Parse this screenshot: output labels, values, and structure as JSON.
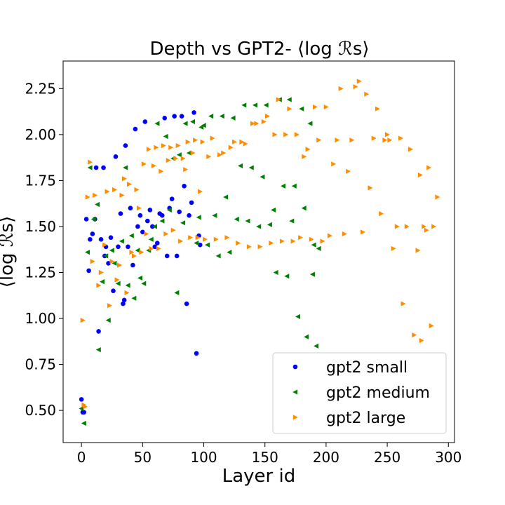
{
  "chart_data": {
    "type": "scatter",
    "title": "Depth vs GPT2- ⟨log ℛs⟩",
    "xlabel": "Layer id",
    "ylabel": "⟨log ℛs⟩",
    "xlim": [
      -15,
      305
    ],
    "ylim": [
      0.325,
      2.4
    ],
    "xticks": [
      0,
      50,
      100,
      150,
      200,
      250,
      300
    ],
    "yticks": [
      0.5,
      0.75,
      1.0,
      1.25,
      1.5,
      1.75,
      2.0,
      2.25
    ],
    "ytick_labels": [
      "0.50",
      "0.75",
      "1.00",
      "1.25",
      "1.50",
      "1.75",
      "2.00",
      "2.25"
    ],
    "grid": false,
    "legend_position": "lower-right",
    "series": [
      {
        "name": "gpt2 small",
        "color": "#0000ff",
        "marker": "circle",
        "points": [
          [
            0,
            0.56
          ],
          [
            1,
            0.49
          ],
          [
            2,
            0.49
          ],
          [
            4,
            1.54
          ],
          [
            6,
            1.26
          ],
          [
            7,
            1.43
          ],
          [
            9,
            1.46
          ],
          [
            11,
            1.54
          ],
          [
            12,
            1.82
          ],
          [
            14,
            0.93
          ],
          [
            16,
            1.43
          ],
          [
            18,
            1.82
          ],
          [
            19,
            1.34
          ],
          [
            20,
            1.39
          ],
          [
            22,
            1.3
          ],
          [
            24,
            1.44
          ],
          [
            26,
            1.15
          ],
          [
            28,
            1.88
          ],
          [
            30,
            1.39
          ],
          [
            32,
            1.57
          ],
          [
            34,
            1.08
          ],
          [
            35,
            1.1
          ],
          [
            36,
            1.94
          ],
          [
            38,
            1.39
          ],
          [
            40,
            1.6
          ],
          [
            42,
            1.29
          ],
          [
            44,
            2.03
          ],
          [
            46,
            1.5
          ],
          [
            48,
            1.56
          ],
          [
            50,
            1.47
          ],
          [
            52,
            2.07
          ],
          [
            54,
            1.53
          ],
          [
            56,
            1.59
          ],
          [
            58,
            1.5
          ],
          [
            60,
            1.39
          ],
          [
            62,
            1.41
          ],
          [
            64,
            1.57
          ],
          [
            66,
            1.56
          ],
          [
            68,
            2.09
          ],
          [
            70,
            1.34
          ],
          [
            72,
            1.6
          ],
          [
            74,
            1.65
          ],
          [
            76,
            2.1
          ],
          [
            78,
            1.34
          ],
          [
            80,
            1.58
          ],
          [
            82,
            2.1
          ],
          [
            84,
            1.72
          ],
          [
            86,
            1.08
          ],
          [
            88,
            1.56
          ],
          [
            90,
            1.63
          ],
          [
            92,
            2.12
          ],
          [
            94,
            0.81
          ],
          [
            96,
            1.45
          ],
          [
            97,
            1.4
          ]
        ]
      },
      {
        "name": "gpt2 medium",
        "color": "#008000",
        "marker": "triangle-left",
        "points": [
          [
            0,
            0.51
          ],
          [
            2,
            0.43
          ],
          [
            5,
            1.36
          ],
          [
            7,
            1.82
          ],
          [
            10,
            1.54
          ],
          [
            13,
            1.62
          ],
          [
            14,
            0.83
          ],
          [
            17,
            1.2
          ],
          [
            20,
            1.34
          ],
          [
            22,
            0.99
          ],
          [
            25,
            1.37
          ],
          [
            27,
            1.3
          ],
          [
            30,
            1.19
          ],
          [
            33,
            1.42
          ],
          [
            36,
            1.82
          ],
          [
            38,
            1.18
          ],
          [
            41,
            1.45
          ],
          [
            43,
            1.11
          ],
          [
            46,
            1.37
          ],
          [
            48,
            1.22
          ],
          [
            51,
            1.19
          ],
          [
            55,
            1.37
          ],
          [
            57,
            1.43
          ],
          [
            60,
            1.5
          ],
          [
            62,
            2.06
          ],
          [
            66,
            1.53
          ],
          [
            69,
            1.99
          ],
          [
            72,
            1.59
          ],
          [
            75,
            1.87
          ],
          [
            78,
            1.14
          ],
          [
            80,
            1.89
          ],
          [
            83,
            1.52
          ],
          [
            85,
            2.06
          ],
          [
            88,
            1.9
          ],
          [
            91,
            2.07
          ],
          [
            94,
            1.41
          ],
          [
            96,
            1.55
          ],
          [
            98,
            2.04
          ],
          [
            100,
            2.05
          ],
          [
            103,
            1.4
          ],
          [
            106,
            2.1
          ],
          [
            109,
            1.56
          ],
          [
            112,
            1.34
          ],
          [
            115,
            2.1
          ],
          [
            118,
            1.66
          ],
          [
            121,
            1.36
          ],
          [
            124,
            2.09
          ],
          [
            127,
            1.54
          ],
          [
            130,
            1.83
          ],
          [
            133,
            2.16
          ],
          [
            136,
            1.53
          ],
          [
            139,
            1.82
          ],
          [
            142,
            2.16
          ],
          [
            145,
            1.5
          ],
          [
            148,
            1.77
          ],
          [
            151,
            2.16
          ],
          [
            154,
            1.51
          ],
          [
            157,
            1.59
          ],
          [
            159,
            1.25
          ],
          [
            162,
            2.19
          ],
          [
            165,
            1.72
          ],
          [
            168,
            1.23
          ],
          [
            170,
            2.19
          ],
          [
            172,
            1.53
          ],
          [
            174,
            1.72
          ],
          [
            177,
            1.01
          ],
          [
            180,
            2.14
          ],
          [
            182,
            1.6
          ],
          [
            184,
            0.9
          ],
          [
            187,
            2.06
          ],
          [
            189,
            1.24
          ],
          [
            190,
            1.4
          ],
          [
            192,
            0.85
          ],
          [
            194,
            1.38
          ]
        ]
      },
      {
        "name": "gpt2 large",
        "color": "#ff8c00",
        "marker": "triangle-right",
        "points": [
          [
            1,
            0.99
          ],
          [
            2,
            0.53
          ],
          [
            3,
            0.52
          ],
          [
            5,
            1.66
          ],
          [
            7,
            1.85
          ],
          [
            9,
            1.31
          ],
          [
            11,
            1.67
          ],
          [
            14,
            1.18
          ],
          [
            16,
            1.25
          ],
          [
            19,
            1.4
          ],
          [
            21,
            1.69
          ],
          [
            23,
            1.07
          ],
          [
            25,
            1.31
          ],
          [
            27,
            1.7
          ],
          [
            29,
            1.21
          ],
          [
            31,
            1.29
          ],
          [
            33,
            1.67
          ],
          [
            35,
            1.76
          ],
          [
            37,
            1.14
          ],
          [
            39,
            1.73
          ],
          [
            41,
            1.36
          ],
          [
            43,
            1.34
          ],
          [
            45,
            1.7
          ],
          [
            47,
            1.6
          ],
          [
            49,
            1.36
          ],
          [
            51,
            1.84
          ],
          [
            53,
            1.46
          ],
          [
            55,
            1.92
          ],
          [
            57,
            1.38
          ],
          [
            59,
            1.83
          ],
          [
            61,
            1.93
          ],
          [
            63,
            1.38
          ],
          [
            65,
            1.8
          ],
          [
            67,
            1.94
          ],
          [
            69,
            1.46
          ],
          [
            71,
            1.86
          ],
          [
            73,
            1.93
          ],
          [
            75,
            1.48
          ],
          [
            77,
            1.87
          ],
          [
            79,
            1.94
          ],
          [
            81,
            1.42
          ],
          [
            83,
            1.87
          ],
          [
            85,
            1.81
          ],
          [
            87,
            1.96
          ],
          [
            89,
            1.44
          ],
          [
            91,
            1.9
          ],
          [
            93,
            1.97
          ],
          [
            95,
            1.44
          ],
          [
            97,
            1.69
          ],
          [
            99,
            1.96
          ],
          [
            101,
            1.43
          ],
          [
            104,
            1.88
          ],
          [
            107,
            1.98
          ],
          [
            110,
            1.43
          ],
          [
            113,
            1.89
          ],
          [
            116,
            1.9
          ],
          [
            119,
            1.44
          ],
          [
            122,
            1.93
          ],
          [
            125,
            1.96
          ],
          [
            128,
            1.41
          ],
          [
            131,
            1.96
          ],
          [
            134,
            1.95
          ],
          [
            137,
            1.39
          ],
          [
            140,
            2.06
          ],
          [
            143,
            2.06
          ],
          [
            146,
            1.39
          ],
          [
            149,
            2.07
          ],
          [
            152,
            2.1
          ],
          [
            155,
            1.41
          ],
          [
            158,
            2.0
          ],
          [
            161,
            2.19
          ],
          [
            164,
            1.42
          ],
          [
            167,
            2.0
          ],
          [
            170,
            2.14
          ],
          [
            173,
            1.42
          ],
          [
            176,
            2.0
          ],
          [
            179,
            1.44
          ],
          [
            182,
            1.88
          ],
          [
            185,
            1.92
          ],
          [
            188,
            1.43
          ],
          [
            191,
            2.15
          ],
          [
            194,
            1.97
          ],
          [
            197,
            1.42
          ],
          [
            200,
            2.15
          ],
          [
            203,
            1.45
          ],
          [
            206,
            1.84
          ],
          [
            209,
            1.97
          ],
          [
            212,
            2.25
          ],
          [
            215,
            1.46
          ],
          [
            218,
            1.8
          ],
          [
            221,
            1.97
          ],
          [
            224,
            2.26
          ],
          [
            227,
            2.29
          ],
          [
            230,
            1.47
          ],
          [
            233,
            2.22
          ],
          [
            236,
            1.71
          ],
          [
            239,
            1.98
          ],
          [
            242,
            2.14
          ],
          [
            245,
            1.57
          ],
          [
            248,
            1.97
          ],
          [
            250,
            2.0
          ],
          [
            252,
            1.97
          ],
          [
            255,
            1.38
          ],
          [
            258,
            1.5
          ],
          [
            261,
            1.98
          ],
          [
            263,
            1.08
          ],
          [
            266,
            1.5
          ],
          [
            269,
            1.92
          ],
          [
            272,
            0.91
          ],
          [
            275,
            1.37
          ],
          [
            277,
            1.78
          ],
          [
            278,
            0.88
          ],
          [
            280,
            1.5
          ],
          [
            282,
            1.48
          ],
          [
            284,
            1.82
          ],
          [
            286,
            0.96
          ],
          [
            288,
            1.5
          ],
          [
            291,
            1.66
          ]
        ]
      }
    ]
  }
}
